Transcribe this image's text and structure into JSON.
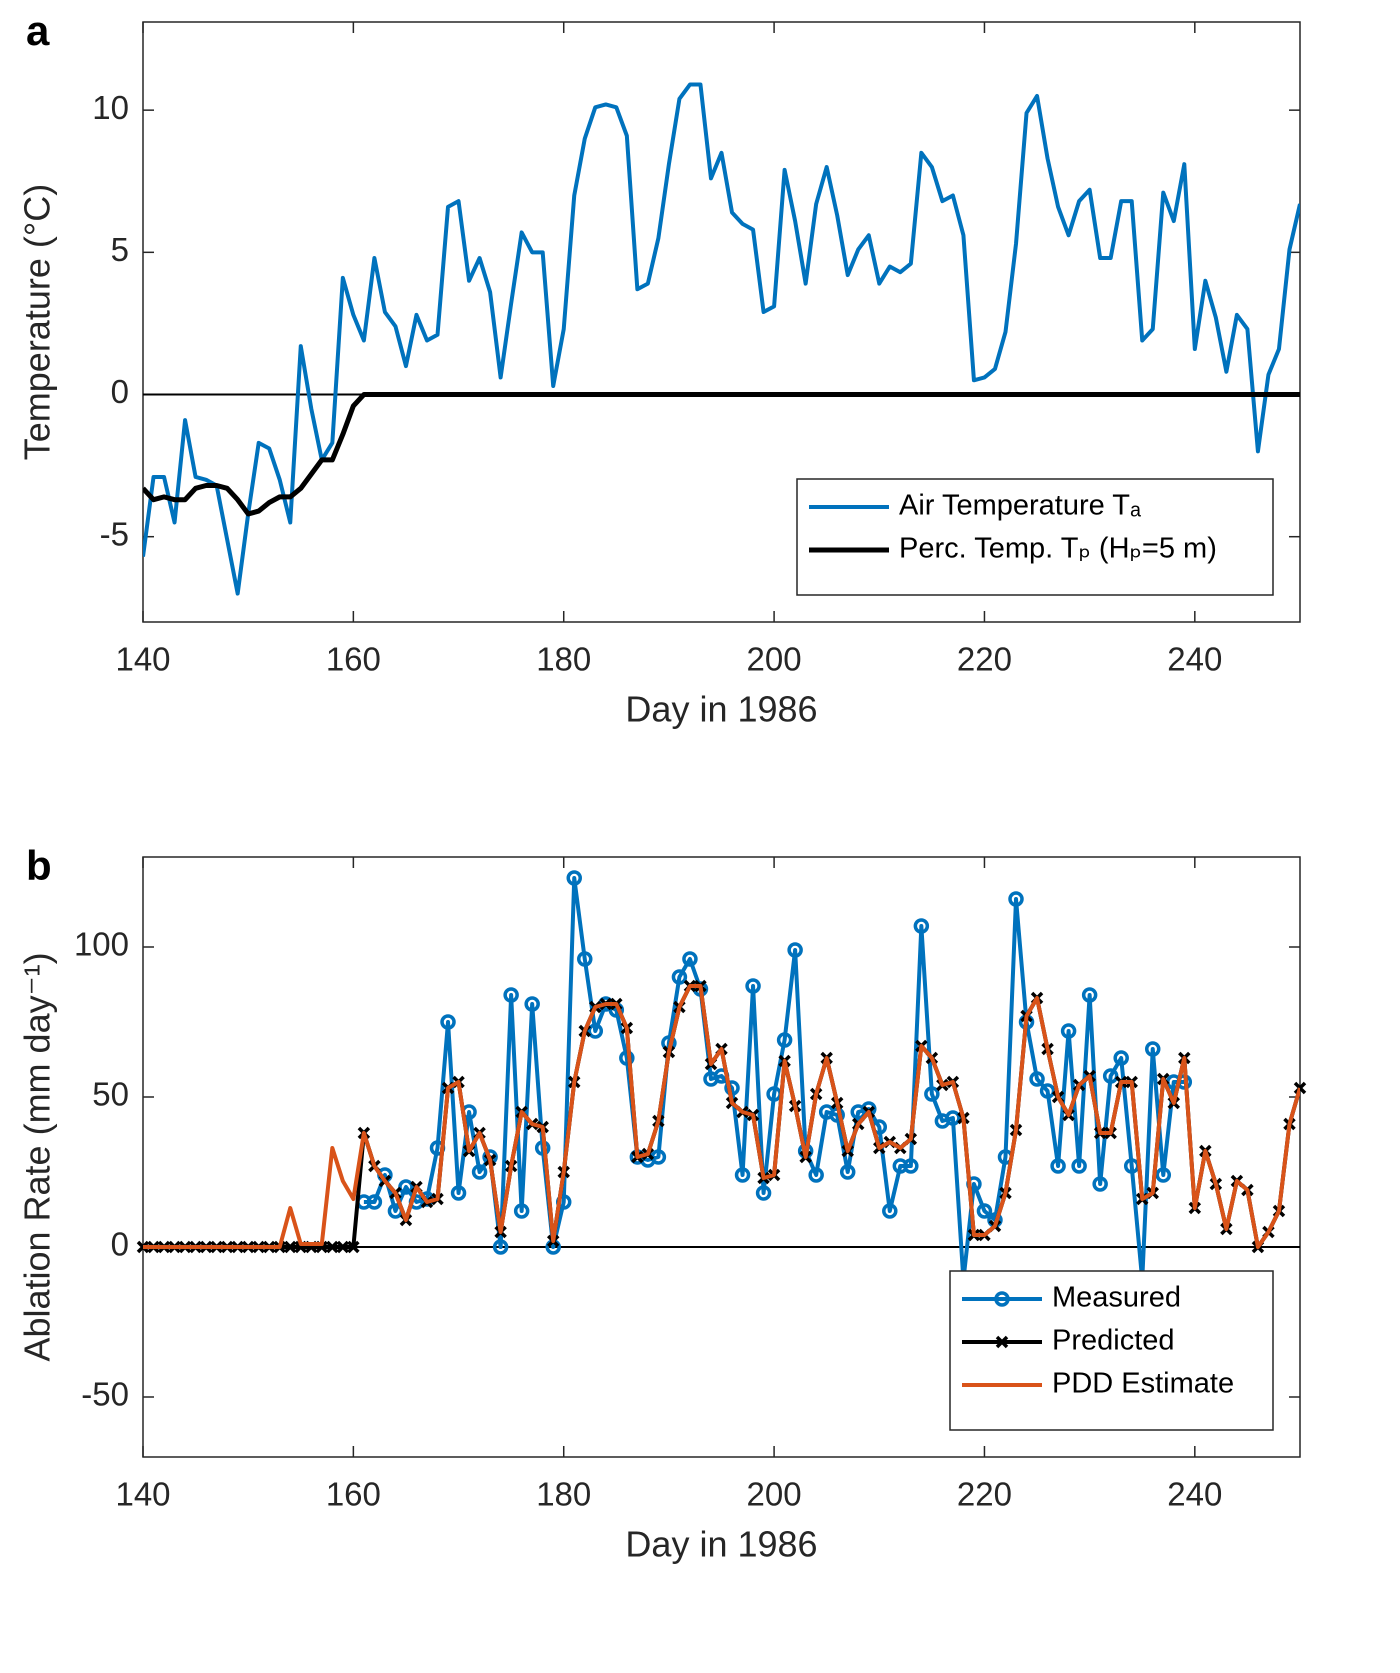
{
  "chart_data": [
    {
      "type": "line",
      "panel_label": "a",
      "xlabel": "Day in 1986",
      "ylabel": "Temperature (°C)",
      "xlim": [
        140,
        250
      ],
      "xticks": [
        140,
        160,
        180,
        200,
        220,
        240
      ],
      "ylim": [
        -8,
        13.1
      ],
      "yticks": [
        -5,
        0,
        5,
        10
      ],
      "legend": "lower right",
      "x": [
        140,
        141,
        142,
        143,
        144,
        145,
        146,
        147,
        148,
        149,
        150,
        151,
        152,
        153,
        154,
        155,
        156,
        157,
        158,
        159,
        160,
        161,
        162,
        163,
        164,
        165,
        166,
        167,
        168,
        169,
        170,
        171,
        172,
        173,
        174,
        175,
        176,
        177,
        178,
        179,
        180,
        181,
        182,
        183,
        184,
        185,
        186,
        187,
        188,
        189,
        190,
        191,
        192,
        193,
        194,
        195,
        196,
        197,
        198,
        199,
        200,
        201,
        202,
        203,
        204,
        205,
        206,
        207,
        208,
        209,
        210,
        211,
        212,
        213,
        214,
        215,
        216,
        217,
        218,
        219,
        220,
        221,
        222,
        223,
        224,
        225,
        226,
        227,
        228,
        229,
        230,
        231,
        232,
        233,
        234,
        235,
        236,
        237,
        238,
        239,
        240,
        241,
        242,
        243,
        244,
        245,
        246,
        247,
        248,
        249,
        250
      ],
      "series": [
        {
          "name": "Air Temperature Tₐ",
          "color": "#0072BD",
          "width": 4,
          "values": [
            -5.7,
            -2.9,
            -2.9,
            -4.5,
            -0.9,
            -2.9,
            -3.0,
            -3.2,
            -5.1,
            -7.0,
            -4.2,
            -1.7,
            -1.9,
            -3.0,
            -4.5,
            1.7,
            -0.5,
            -2.3,
            -1.7,
            4.1,
            2.8,
            1.9,
            4.8,
            2.9,
            2.4,
            1.0,
            2.8,
            1.9,
            2.1,
            6.6,
            6.8,
            4.0,
            4.8,
            3.6,
            0.6,
            3.2,
            5.7,
            5.0,
            5.0,
            0.3,
            2.3,
            7.0,
            9.0,
            10.1,
            10.2,
            10.1,
            9.1,
            3.7,
            3.9,
            5.5,
            8.1,
            10.4,
            10.9,
            10.9,
            7.6,
            8.5,
            6.4,
            6.0,
            5.8,
            2.9,
            3.1,
            7.9,
            6.1,
            3.9,
            6.7,
            8.0,
            6.3,
            4.2,
            5.1,
            5.6,
            3.9,
            4.5,
            4.3,
            4.6,
            8.5,
            8.0,
            6.8,
            7.0,
            5.6,
            0.5,
            0.6,
            0.9,
            2.2,
            5.3,
            9.9,
            10.5,
            8.3,
            6.6,
            5.6,
            6.8,
            7.2,
            4.8,
            4.8,
            6.8,
            6.8,
            1.9,
            2.3,
            7.1,
            6.1,
            8.1,
            1.6,
            4.0,
            2.7,
            0.8,
            2.8,
            2.3,
            -2.0,
            0.7,
            1.6,
            5.1,
            6.7
          ]
        },
        {
          "name": "Perc. Temp. Tₚ (Hₚ=5 m)",
          "color": "#000000",
          "width": 5,
          "values": [
            -3.3,
            -3.7,
            -3.6,
            -3.7,
            -3.7,
            -3.3,
            -3.2,
            -3.2,
            -3.3,
            -3.7,
            -4.2,
            -4.1,
            -3.8,
            -3.6,
            -3.6,
            -3.3,
            -2.8,
            -2.3,
            -2.3,
            -1.4,
            -0.4,
            0,
            0,
            0,
            0,
            0,
            0,
            0,
            0,
            0,
            0,
            0,
            0,
            0,
            0,
            0,
            0,
            0,
            0,
            0,
            0,
            0,
            0,
            0,
            0,
            0,
            0,
            0,
            0,
            0,
            0,
            0,
            0,
            0,
            0,
            0,
            0,
            0,
            0,
            0,
            0,
            0,
            0,
            0,
            0,
            0,
            0,
            0,
            0,
            0,
            0,
            0,
            0,
            0,
            0,
            0,
            0,
            0,
            0,
            0,
            0,
            0,
            0,
            0,
            0,
            0,
            0,
            0,
            0,
            0,
            0,
            0,
            0,
            0,
            0,
            0,
            0,
            0,
            0,
            0,
            0,
            0,
            0,
            0,
            0,
            0,
            0,
            0,
            0,
            0,
            0
          ]
        }
      ]
    },
    {
      "type": "line",
      "panel_label": "b",
      "xlabel": "Day in 1986",
      "ylabel": "Ablation Rate (mm day⁻¹)",
      "xlim": [
        140,
        250
      ],
      "xticks": [
        140,
        160,
        180,
        200,
        220,
        240
      ],
      "ylim": [
        -70,
        130
      ],
      "yticks": [
        -50,
        0,
        50,
        100
      ],
      "legend": "lower right",
      "x": [
        140,
        141,
        142,
        143,
        144,
        145,
        146,
        147,
        148,
        149,
        150,
        151,
        152,
        153,
        154,
        155,
        156,
        157,
        158,
        159,
        160,
        161,
        162,
        163,
        164,
        165,
        166,
        167,
        168,
        169,
        170,
        171,
        172,
        173,
        174,
        175,
        176,
        177,
        178,
        179,
        180,
        181,
        182,
        183,
        184,
        185,
        186,
        187,
        188,
        189,
        190,
        191,
        192,
        193,
        194,
        195,
        196,
        197,
        198,
        199,
        200,
        201,
        202,
        203,
        204,
        205,
        206,
        207,
        208,
        209,
        210,
        211,
        212,
        213,
        214,
        215,
        216,
        217,
        218,
        219,
        220,
        221,
        222,
        223,
        224,
        225,
        226,
        227,
        228,
        229,
        230,
        231,
        232,
        233,
        234,
        235,
        236,
        237,
        238,
        239,
        240,
        241,
        242,
        243,
        244,
        245,
        246,
        247,
        248,
        249,
        250
      ],
      "series": [
        {
          "name": "Measured",
          "color": "#0072BD",
          "width": 4,
          "marker": "o",
          "values": [
            null,
            null,
            null,
            null,
            null,
            null,
            null,
            null,
            null,
            null,
            null,
            null,
            null,
            null,
            null,
            null,
            null,
            null,
            null,
            null,
            null,
            15,
            15,
            24,
            12,
            20,
            15,
            16,
            33,
            75,
            18,
            45,
            25,
            30,
            0,
            84,
            12,
            81,
            33,
            0,
            15,
            123,
            96,
            72,
            81,
            79,
            63,
            30,
            29,
            30,
            68,
            90,
            96,
            86,
            56,
            57,
            53,
            24,
            87,
            18,
            51,
            69,
            99,
            32,
            24,
            45,
            44,
            25,
            45,
            46,
            40,
            12,
            27,
            27,
            107,
            51,
            42,
            43,
            -11,
            21,
            12,
            9,
            30,
            116,
            75,
            56,
            52,
            27,
            72,
            27,
            84,
            21,
            57,
            63,
            27,
            -11,
            66,
            24,
            55,
            55,
            null,
            null,
            null,
            null,
            null,
            null,
            null,
            null,
            null,
            null,
            null
          ]
        },
        {
          "name": "Predicted",
          "color": "#000000",
          "width": 4,
          "marker": "x",
          "values": [
            0,
            0,
            0,
            0,
            0,
            0,
            0,
            0,
            0,
            0,
            0,
            0,
            0,
            0,
            0,
            0,
            0,
            0,
            0,
            0,
            0,
            38,
            27,
            22,
            18,
            9,
            20,
            15,
            16,
            53,
            55,
            32,
            38,
            29,
            5,
            27,
            45,
            41,
            40,
            2,
            25,
            55,
            72,
            80,
            81,
            81,
            73,
            30,
            31,
            42,
            65,
            80,
            87,
            87,
            61,
            66,
            48,
            45,
            44,
            23,
            24,
            62,
            47,
            30,
            51,
            63,
            48,
            32,
            41,
            45,
            33,
            35,
            33,
            36,
            67,
            63,
            54,
            55,
            43,
            4,
            4,
            7,
            18,
            39,
            77,
            83,
            66,
            50,
            44,
            54,
            57,
            38,
            38,
            55,
            55,
            16,
            18,
            56,
            48,
            63,
            13,
            32,
            21,
            6,
            22,
            19,
            0,
            5,
            12,
            41,
            53
          ]
        },
        {
          "name": "PDD Estimate",
          "color": "#D95319",
          "width": 4,
          "values": [
            0,
            0,
            0,
            0,
            0,
            0,
            0,
            0,
            0,
            0,
            0,
            0,
            0,
            0,
            13,
            1,
            1,
            1,
            33,
            22,
            16,
            38,
            27,
            22,
            18,
            9,
            20,
            15,
            16,
            53,
            55,
            32,
            38,
            29,
            5,
            27,
            45,
            41,
            40,
            2,
            25,
            55,
            72,
            80,
            81,
            81,
            73,
            30,
            31,
            42,
            65,
            80,
            87,
            87,
            61,
            66,
            48,
            45,
            44,
            23,
            24,
            62,
            47,
            30,
            51,
            63,
            48,
            32,
            41,
            45,
            33,
            35,
            33,
            36,
            67,
            63,
            54,
            55,
            43,
            4,
            4,
            7,
            18,
            39,
            77,
            83,
            66,
            50,
            44,
            54,
            57,
            38,
            38,
            55,
            55,
            16,
            18,
            56,
            48,
            63,
            13,
            32,
            21,
            6,
            22,
            19,
            0,
            5,
            12,
            41,
            53
          ]
        }
      ]
    }
  ]
}
